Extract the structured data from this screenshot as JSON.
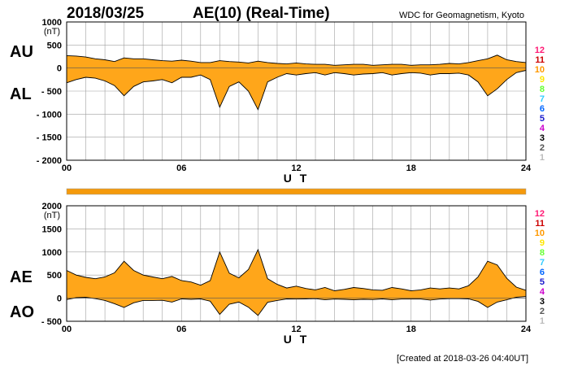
{
  "header": {
    "date": "2018/03/25",
    "title": "AE(10) (Real-Time)",
    "source": "WDC for Geomagnetism, Kyoto"
  },
  "footer": {
    "created": "[Created at 2018-03-26 04:40UT]"
  },
  "colors": {
    "fill": "#ffa61a",
    "line": "#000000",
    "grid": "#a0a0a0",
    "bar": "#f59a0c"
  },
  "legend": {
    "items": [
      {
        "label": "12",
        "color": "#ff1a75"
      },
      {
        "label": "11",
        "color": "#cc0000"
      },
      {
        "label": "10",
        "color": "#ff9900"
      },
      {
        "label": "9",
        "color": "#ffe600"
      },
      {
        "label": "8",
        "color": "#66ff33"
      },
      {
        "label": "7",
        "color": "#33ccff"
      },
      {
        "label": "6",
        "color": "#0066ff"
      },
      {
        "label": "5",
        "color": "#1a1acc"
      },
      {
        "label": "4",
        "color": "#cc00cc"
      },
      {
        "label": "3",
        "color": "#000000"
      },
      {
        "label": "2",
        "color": "#555555"
      },
      {
        "label": "1",
        "color": "#bbbbbb"
      }
    ]
  },
  "chart_data": [
    {
      "type": "area",
      "name": "AU/AL",
      "side_labels": [
        "AU",
        "AL"
      ],
      "unit": "(nT)",
      "xlabel": "U T",
      "xticks": [
        "00",
        "06",
        "12",
        "18",
        "24"
      ],
      "xlim": [
        0,
        24
      ],
      "ylim": [
        -2000,
        1000
      ],
      "yticks": [
        "1000",
        "500",
        "0",
        "- 500",
        "- 1000",
        "- 1500",
        "- 2000"
      ],
      "series": [
        {
          "name": "AU",
          "x": [
            0,
            0.5,
            1,
            1.5,
            2,
            2.5,
            3,
            3.5,
            4,
            4.5,
            5,
            5.5,
            6,
            6.5,
            7,
            7.5,
            8,
            8.5,
            9,
            9.5,
            10,
            10.5,
            11,
            11.5,
            12,
            12.5,
            13,
            13.5,
            14,
            14.5,
            15,
            15.5,
            16,
            16.5,
            17,
            17.5,
            18,
            18.5,
            19,
            19.5,
            20,
            20.5,
            21,
            21.5,
            22,
            22.5,
            23,
            23.5,
            24
          ],
          "values": [
            270,
            260,
            240,
            200,
            180,
            140,
            220,
            200,
            200,
            180,
            160,
            150,
            170,
            150,
            120,
            120,
            160,
            140,
            130,
            110,
            150,
            120,
            100,
            90,
            110,
            90,
            80,
            80,
            60,
            70,
            80,
            80,
            60,
            70,
            80,
            80,
            60,
            70,
            70,
            80,
            100,
            90,
            120,
            160,
            200,
            280,
            180,
            140,
            120
          ]
        },
        {
          "name": "AL",
          "x": [
            0,
            0.5,
            1,
            1.5,
            2,
            2.5,
            3,
            3.5,
            4,
            4.5,
            5,
            5.5,
            6,
            6.5,
            7,
            7.5,
            8,
            8.5,
            9,
            9.5,
            10,
            10.5,
            11,
            11.5,
            12,
            12.5,
            13,
            13.5,
            14,
            14.5,
            15,
            15.5,
            16,
            16.5,
            17,
            17.5,
            18,
            18.5,
            19,
            19.5,
            20,
            20.5,
            21,
            21.5,
            22,
            22.5,
            23,
            23.5,
            24
          ],
          "values": [
            -320,
            -250,
            -200,
            -220,
            -280,
            -380,
            -600,
            -400,
            -300,
            -280,
            -250,
            -320,
            -200,
            -200,
            -150,
            -250,
            -850,
            -400,
            -300,
            -500,
            -900,
            -300,
            -200,
            -120,
            -150,
            -120,
            -100,
            -150,
            -100,
            -120,
            -150,
            -130,
            -120,
            -100,
            -150,
            -120,
            -100,
            -110,
            -150,
            -120,
            -120,
            -110,
            -150,
            -300,
            -600,
            -450,
            -250,
            -100,
            -50
          ]
        }
      ]
    },
    {
      "type": "area",
      "name": "AE/AO",
      "side_labels": [
        "AE",
        "AO"
      ],
      "unit": "(nT)",
      "xlabel": "U T",
      "xticks": [
        "00",
        "06",
        "12",
        "18",
        "24"
      ],
      "xlim": [
        0,
        24
      ],
      "ylim": [
        -500,
        2000
      ],
      "yticks": [
        "2000",
        "1500",
        "1000",
        "500",
        "0",
        "- 500"
      ],
      "series": [
        {
          "name": "AE",
          "x": [
            0,
            0.5,
            1,
            1.5,
            2,
            2.5,
            3,
            3.5,
            4,
            4.5,
            5,
            5.5,
            6,
            6.5,
            7,
            7.5,
            8,
            8.5,
            9,
            9.5,
            10,
            10.5,
            11,
            11.5,
            12,
            12.5,
            13,
            13.5,
            14,
            14.5,
            15,
            15.5,
            16,
            16.5,
            17,
            17.5,
            18,
            18.5,
            19,
            19.5,
            20,
            20.5,
            21,
            21.5,
            22,
            22.5,
            23,
            23.5,
            24
          ],
          "values": [
            600,
            500,
            450,
            420,
            460,
            550,
            800,
            600,
            500,
            460,
            420,
            470,
            380,
            350,
            280,
            380,
            1000,
            540,
            440,
            620,
            1050,
            420,
            300,
            220,
            260,
            210,
            180,
            230,
            160,
            190,
            230,
            210,
            180,
            170,
            230,
            200,
            160,
            180,
            220,
            200,
            220,
            200,
            270,
            460,
            800,
            720,
            430,
            240,
            170
          ]
        },
        {
          "name": "AO",
          "x": [
            0,
            0.5,
            1,
            1.5,
            2,
            2.5,
            3,
            3.5,
            4,
            4.5,
            5,
            5.5,
            6,
            6.5,
            7,
            7.5,
            8,
            8.5,
            9,
            9.5,
            10,
            10.5,
            11,
            11.5,
            12,
            12.5,
            13,
            13.5,
            14,
            14.5,
            15,
            15.5,
            16,
            16.5,
            17,
            17.5,
            18,
            18.5,
            19,
            19.5,
            20,
            20.5,
            21,
            21.5,
            22,
            22.5,
            23,
            23.5,
            24
          ],
          "values": [
            -30,
            10,
            20,
            -10,
            -50,
            -120,
            -200,
            -100,
            -50,
            -50,
            -45,
            -85,
            -15,
            -25,
            -15,
            -65,
            -350,
            -130,
            -85,
            -195,
            -375,
            -90,
            -50,
            -15,
            -20,
            -15,
            -10,
            -35,
            -20,
            -25,
            -35,
            -25,
            -30,
            -15,
            -35,
            -20,
            -20,
            -20,
            -40,
            -20,
            -10,
            -10,
            -15,
            -70,
            -200,
            -85,
            -35,
            20,
            35
          ]
        }
      ]
    }
  ]
}
